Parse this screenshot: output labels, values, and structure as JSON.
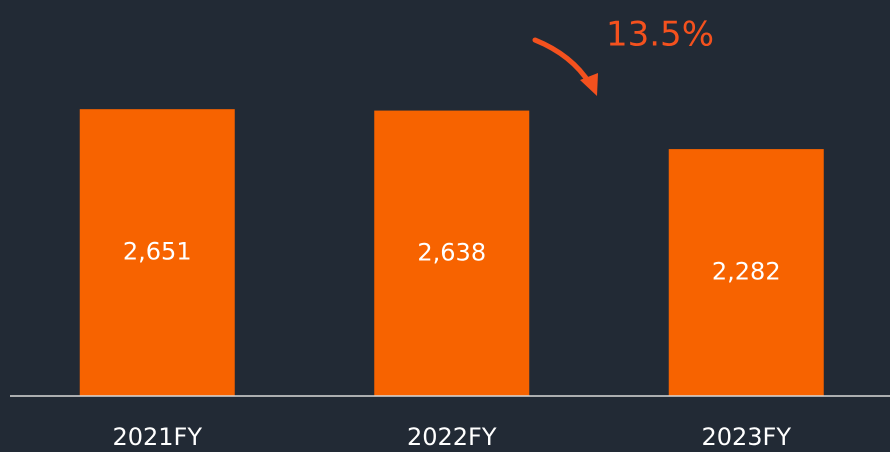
{
  "chart_data": {
    "type": "bar",
    "categories": [
      "2021FY",
      "2022FY",
      "2023FY"
    ],
    "values": [
      2651,
      2638,
      2282
    ],
    "value_labels": [
      "2,651",
      "2,638",
      "2,282"
    ],
    "color": "#f76300",
    "ylim": [
      0,
      3660
    ],
    "annotation": "13.5%"
  }
}
